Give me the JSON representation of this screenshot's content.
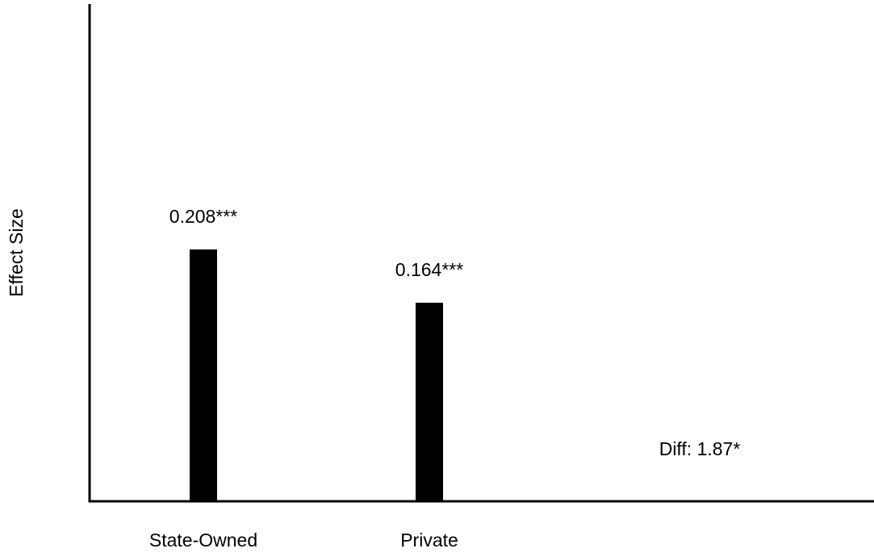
{
  "chart_data": {
    "type": "bar",
    "categories": [
      "State-Owned",
      "Private"
    ],
    "values": [
      0.208,
      0.164
    ],
    "data_labels": [
      "0.208***",
      "0.164***"
    ],
    "title": "",
    "xlabel": "",
    "ylabel": "Effect Size",
    "ylim": [
      0,
      0.4
    ],
    "grid": false,
    "annotations": [
      {
        "text": "Diff: 1.87*"
      }
    ],
    "colors": {
      "bar": "#000000",
      "axis": "#000000",
      "background": "#ffffff"
    }
  }
}
